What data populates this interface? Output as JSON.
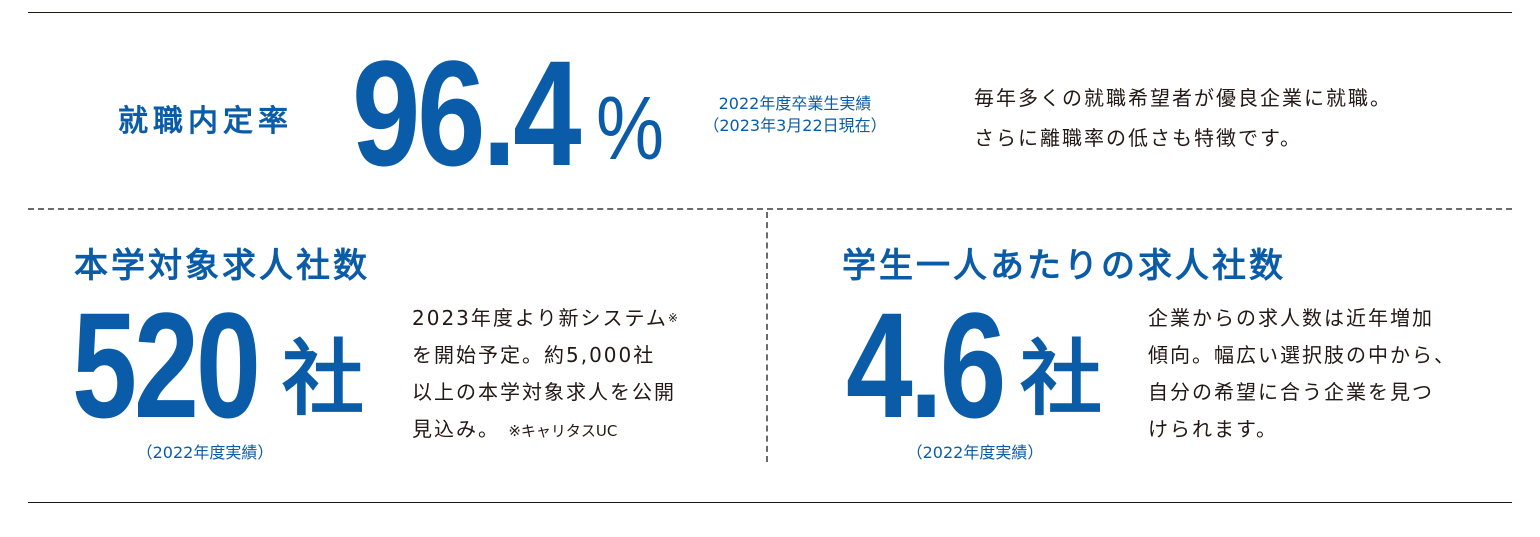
{
  "employment": {
    "label": "就職内定率",
    "value": "96.4",
    "unit": "%",
    "note_line1": "2022年度卒業生実績",
    "note_line2": "（2023年3月22日現在）",
    "desc_line1": "毎年多くの就職希望者が優良企業に就職。",
    "desc_line2": "さらに離職率の低さも特徴です。"
  },
  "job_offers": {
    "heading": "本学対象求人社数",
    "value": "520",
    "unit": "社",
    "note": "（2022年度実績）",
    "desc_line1": "2023年度より新システム",
    "desc_mark": "※",
    "desc_line2": "を開始予定。約5,000社",
    "desc_line3": "以上の本学対象求人を公開",
    "desc_line4": "見込み。",
    "desc_footnote": "※キャリタスUC"
  },
  "per_student": {
    "heading": "学生一人あたりの求人社数",
    "value": "4.6",
    "unit": "社",
    "note": "（2022年度実績）",
    "desc_line1": "企業からの求人数は近年増加",
    "desc_line2": "傾向。幅広い選択肢の中から、",
    "desc_line3": "自分の希望に合う企業を見つ",
    "desc_line4": "けられます。"
  }
}
